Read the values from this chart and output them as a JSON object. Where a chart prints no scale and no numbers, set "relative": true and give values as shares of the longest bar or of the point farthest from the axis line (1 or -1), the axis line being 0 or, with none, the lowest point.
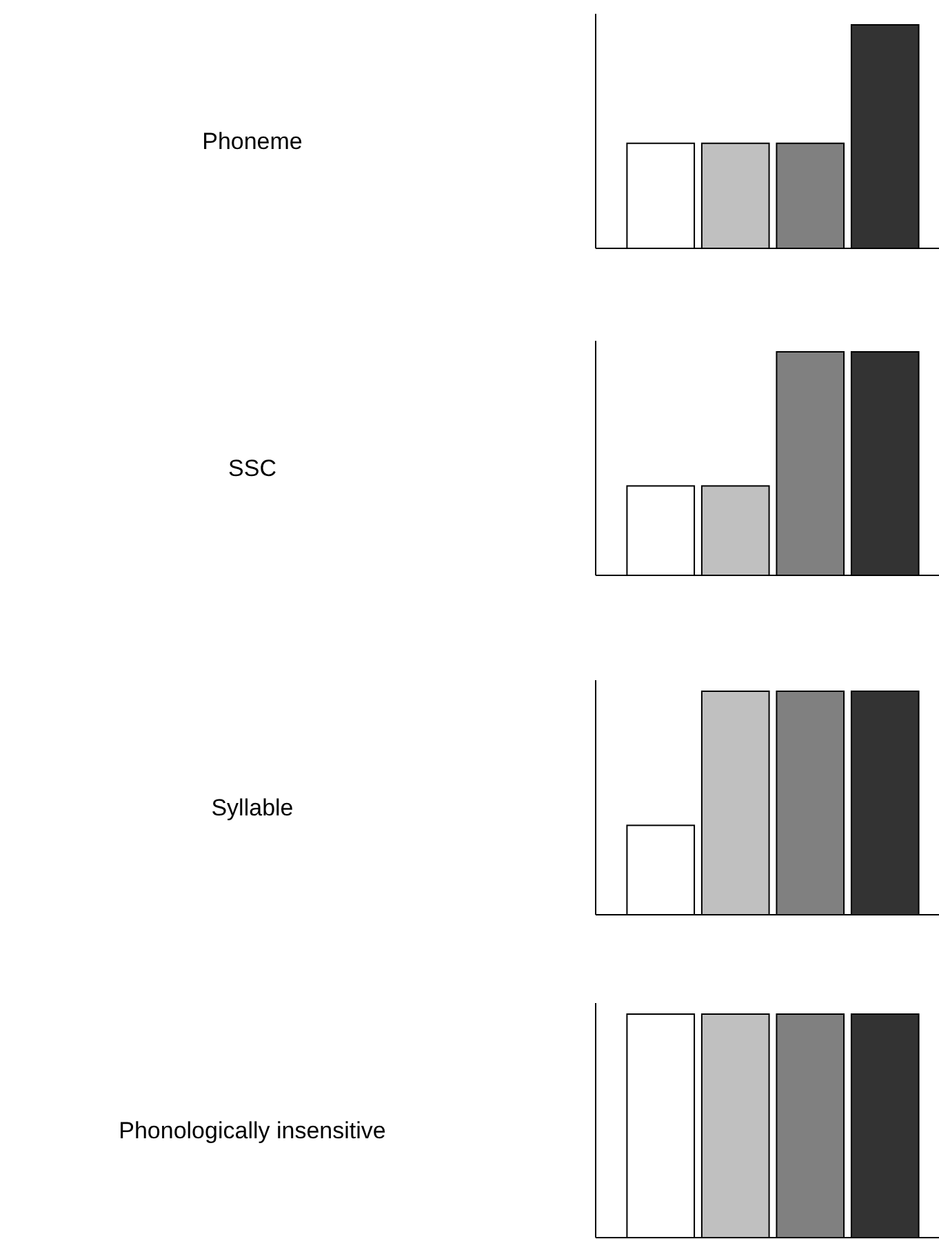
{
  "chart_data": [
    {
      "type": "bar",
      "ylabel": "Phoneme",
      "relative": true,
      "categories": [
        null,
        null,
        null,
        null
      ],
      "values": [
        0.47,
        0.47,
        0.47,
        1
      ],
      "colors": [
        "#ffffff",
        "#c0c0c0",
        "#808080",
        "#333333"
      ]
    },
    {
      "type": "bar",
      "ylabel": "SSC",
      "relative": true,
      "categories": [
        null,
        null,
        null,
        null
      ],
      "values": [
        0.4,
        0.4,
        1,
        1
      ],
      "colors": [
        "#ffffff",
        "#c0c0c0",
        "#808080",
        "#333333"
      ]
    },
    {
      "type": "bar",
      "ylabel": "Syllable",
      "relative": true,
      "categories": [
        null,
        null,
        null,
        null
      ],
      "values": [
        0.4,
        1,
        1,
        1
      ],
      "colors": [
        "#ffffff",
        "#c0c0c0",
        "#808080",
        "#333333"
      ]
    },
    {
      "type": "bar",
      "ylabel": "Phonologically insensitive",
      "relative": true,
      "categories": [
        null,
        null,
        null,
        null
      ],
      "values": [
        1,
        1,
        1,
        1
      ],
      "colors": [
        "#ffffff",
        "#c0c0c0",
        "#808080",
        "#333333"
      ]
    }
  ]
}
